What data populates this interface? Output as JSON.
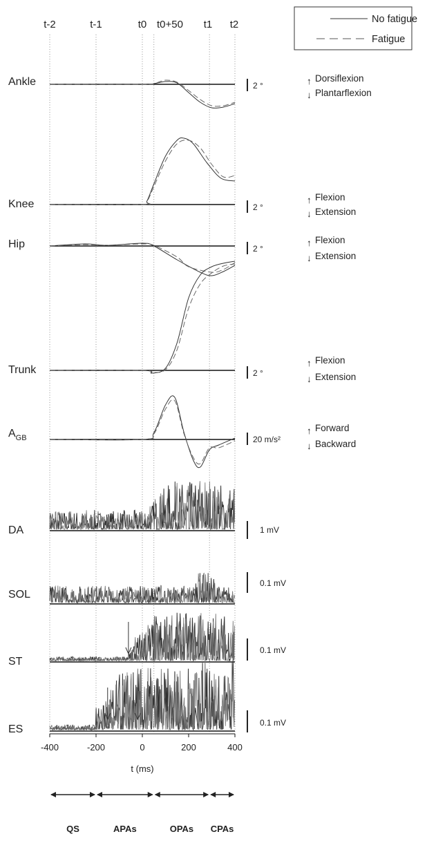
{
  "chart_data": {
    "type": "line",
    "x_axis": {
      "label": "t (ms)",
      "range": [
        -400,
        400
      ],
      "ticks": [
        "-400",
        "-200",
        "0",
        "200",
        "400"
      ]
    },
    "event_markers": [
      {
        "label": "t-2",
        "t": -400
      },
      {
        "label": "t-1",
        "t": -200
      },
      {
        "label": "t0",
        "t": 0
      },
      {
        "label": "t0+50",
        "t": 50
      },
      {
        "label": "t1",
        "t": 290
      },
      {
        "label": "t2",
        "t": 400
      }
    ],
    "legend": {
      "placement": "top-right",
      "entries": [
        {
          "label": "No fatigue",
          "style": "solid"
        },
        {
          "label": "Fatigue",
          "style": "dashed"
        }
      ]
    },
    "series": [
      {
        "name": "No fatigue",
        "style": "solid"
      },
      {
        "name": "Fatigue",
        "style": "dashed"
      }
    ],
    "panels": [
      {
        "id": "ankle",
        "label": "Ankle",
        "scale": "2 °",
        "directions": [
          "Dorsiflexion",
          "Plantarflexion"
        ],
        "kind": "smooth",
        "nofatigue": [
          [
            -400,
            0
          ],
          [
            0,
            0
          ],
          [
            50,
            -1
          ],
          [
            100,
            -4
          ],
          [
            150,
            -2
          ],
          [
            200,
            12
          ],
          [
            250,
            26
          ],
          [
            300,
            34
          ],
          [
            350,
            33
          ],
          [
            400,
            28
          ]
        ],
        "fatigue": [
          [
            -400,
            0
          ],
          [
            0,
            0
          ],
          [
            50,
            -1
          ],
          [
            100,
            -6
          ],
          [
            150,
            -3
          ],
          [
            200,
            9
          ],
          [
            250,
            22
          ],
          [
            300,
            31
          ],
          [
            350,
            31
          ],
          [
            400,
            26
          ]
        ]
      },
      {
        "id": "knee",
        "label": "Knee",
        "scale": "2 °",
        "directions": [
          "Flexion",
          "Extension"
        ],
        "kind": "smooth",
        "nofatigue": [
          [
            -400,
            0
          ],
          [
            0,
            0
          ],
          [
            20,
            -5
          ],
          [
            50,
            -30
          ],
          [
            100,
            -70
          ],
          [
            150,
            -93
          ],
          [
            180,
            -96
          ],
          [
            220,
            -88
          ],
          [
            280,
            -60
          ],
          [
            340,
            -38
          ],
          [
            400,
            -34
          ]
        ],
        "fatigue": [
          [
            -400,
            0
          ],
          [
            0,
            0
          ],
          [
            20,
            -4
          ],
          [
            50,
            -26
          ],
          [
            100,
            -63
          ],
          [
            150,
            -88
          ],
          [
            200,
            -93
          ],
          [
            250,
            -82
          ],
          [
            300,
            -58
          ],
          [
            350,
            -40
          ],
          [
            400,
            -42
          ]
        ]
      },
      {
        "id": "hip",
        "label": "Hip",
        "scale": "2 °",
        "directions": [
          "Flexion",
          "Extension"
        ],
        "kind": "smooth",
        "nofatigue": [
          [
            -400,
            0
          ],
          [
            -250,
            -3
          ],
          [
            -150,
            -1
          ],
          [
            0,
            -4
          ],
          [
            50,
            0
          ],
          [
            150,
            20
          ],
          [
            250,
            38
          ],
          [
            300,
            43
          ],
          [
            350,
            37
          ],
          [
            400,
            28
          ]
        ],
        "fatigue": [
          [
            -400,
            0
          ],
          [
            -250,
            -2
          ],
          [
            -150,
            -1
          ],
          [
            0,
            -3
          ],
          [
            50,
            -1
          ],
          [
            150,
            16
          ],
          [
            200,
            30
          ],
          [
            300,
            38
          ],
          [
            350,
            34
          ],
          [
            400,
            24
          ]
        ]
      },
      {
        "id": "trunk",
        "label": "Trunk",
        "scale": "2 °",
        "directions": [
          "Flexion",
          "Extension"
        ],
        "kind": "smooth",
        "nofatigue": [
          [
            -400,
            0
          ],
          [
            0,
            0
          ],
          [
            40,
            4
          ],
          [
            100,
            -3
          ],
          [
            150,
            -40
          ],
          [
            200,
            -105
          ],
          [
            250,
            -138
          ],
          [
            300,
            -150
          ],
          [
            350,
            -155
          ],
          [
            400,
            -158
          ]
        ],
        "fatigue": [
          [
            -400,
            0
          ],
          [
            0,
            0
          ],
          [
            40,
            3
          ],
          [
            100,
            -1
          ],
          [
            150,
            -30
          ],
          [
            200,
            -90
          ],
          [
            250,
            -125
          ],
          [
            300,
            -141
          ],
          [
            350,
            -151
          ],
          [
            400,
            -154
          ]
        ]
      },
      {
        "id": "agb",
        "label": "A",
        "label_sub": "GB",
        "scale": "20 m/s²",
        "directions": [
          "Forward",
          "Backward"
        ],
        "kind": "smooth",
        "nofatigue": [
          [
            -400,
            0
          ],
          [
            0,
            0
          ],
          [
            50,
            -10
          ],
          [
            100,
            -50
          ],
          [
            140,
            -61
          ],
          [
            180,
            -10
          ],
          [
            220,
            30
          ],
          [
            250,
            40
          ],
          [
            290,
            15
          ],
          [
            330,
            8
          ],
          [
            400,
            -2
          ]
        ],
        "fatigue": [
          [
            -400,
            0
          ],
          [
            0,
            0
          ],
          [
            50,
            -8
          ],
          [
            100,
            -44
          ],
          [
            140,
            -56
          ],
          [
            180,
            -8
          ],
          [
            220,
            26
          ],
          [
            250,
            35
          ],
          [
            290,
            12
          ],
          [
            330,
            12
          ],
          [
            400,
            2
          ]
        ]
      },
      {
        "id": "da",
        "label": "DA",
        "scale": "1 mV",
        "kind": "emg",
        "amp": 70,
        "onset": 0
      },
      {
        "id": "sol",
        "label": "SOL",
        "scale": "0.1 mV",
        "kind": "emg",
        "amp": 55,
        "onset": -400
      },
      {
        "id": "st",
        "label": "ST",
        "scale": "0.1 mV",
        "kind": "emg",
        "amp": 70,
        "onset": -60
      },
      {
        "id": "es",
        "label": "ES",
        "scale": "0.1 mV",
        "kind": "emg",
        "amp": 90,
        "onset": -200
      }
    ],
    "onset_arrows": [
      {
        "panel": "st",
        "t": -60
      },
      {
        "panel": "es",
        "t": -150
      },
      {
        "panel": "es",
        "t": -20
      }
    ],
    "phases": [
      {
        "label": "QS",
        "start": -400,
        "end": -200
      },
      {
        "label": "APAs",
        "start": -200,
        "end": 50
      },
      {
        "label": "OPAs",
        "start": 50,
        "end": 290
      },
      {
        "label": "CPAs",
        "start": 290,
        "end": 400
      }
    ]
  }
}
